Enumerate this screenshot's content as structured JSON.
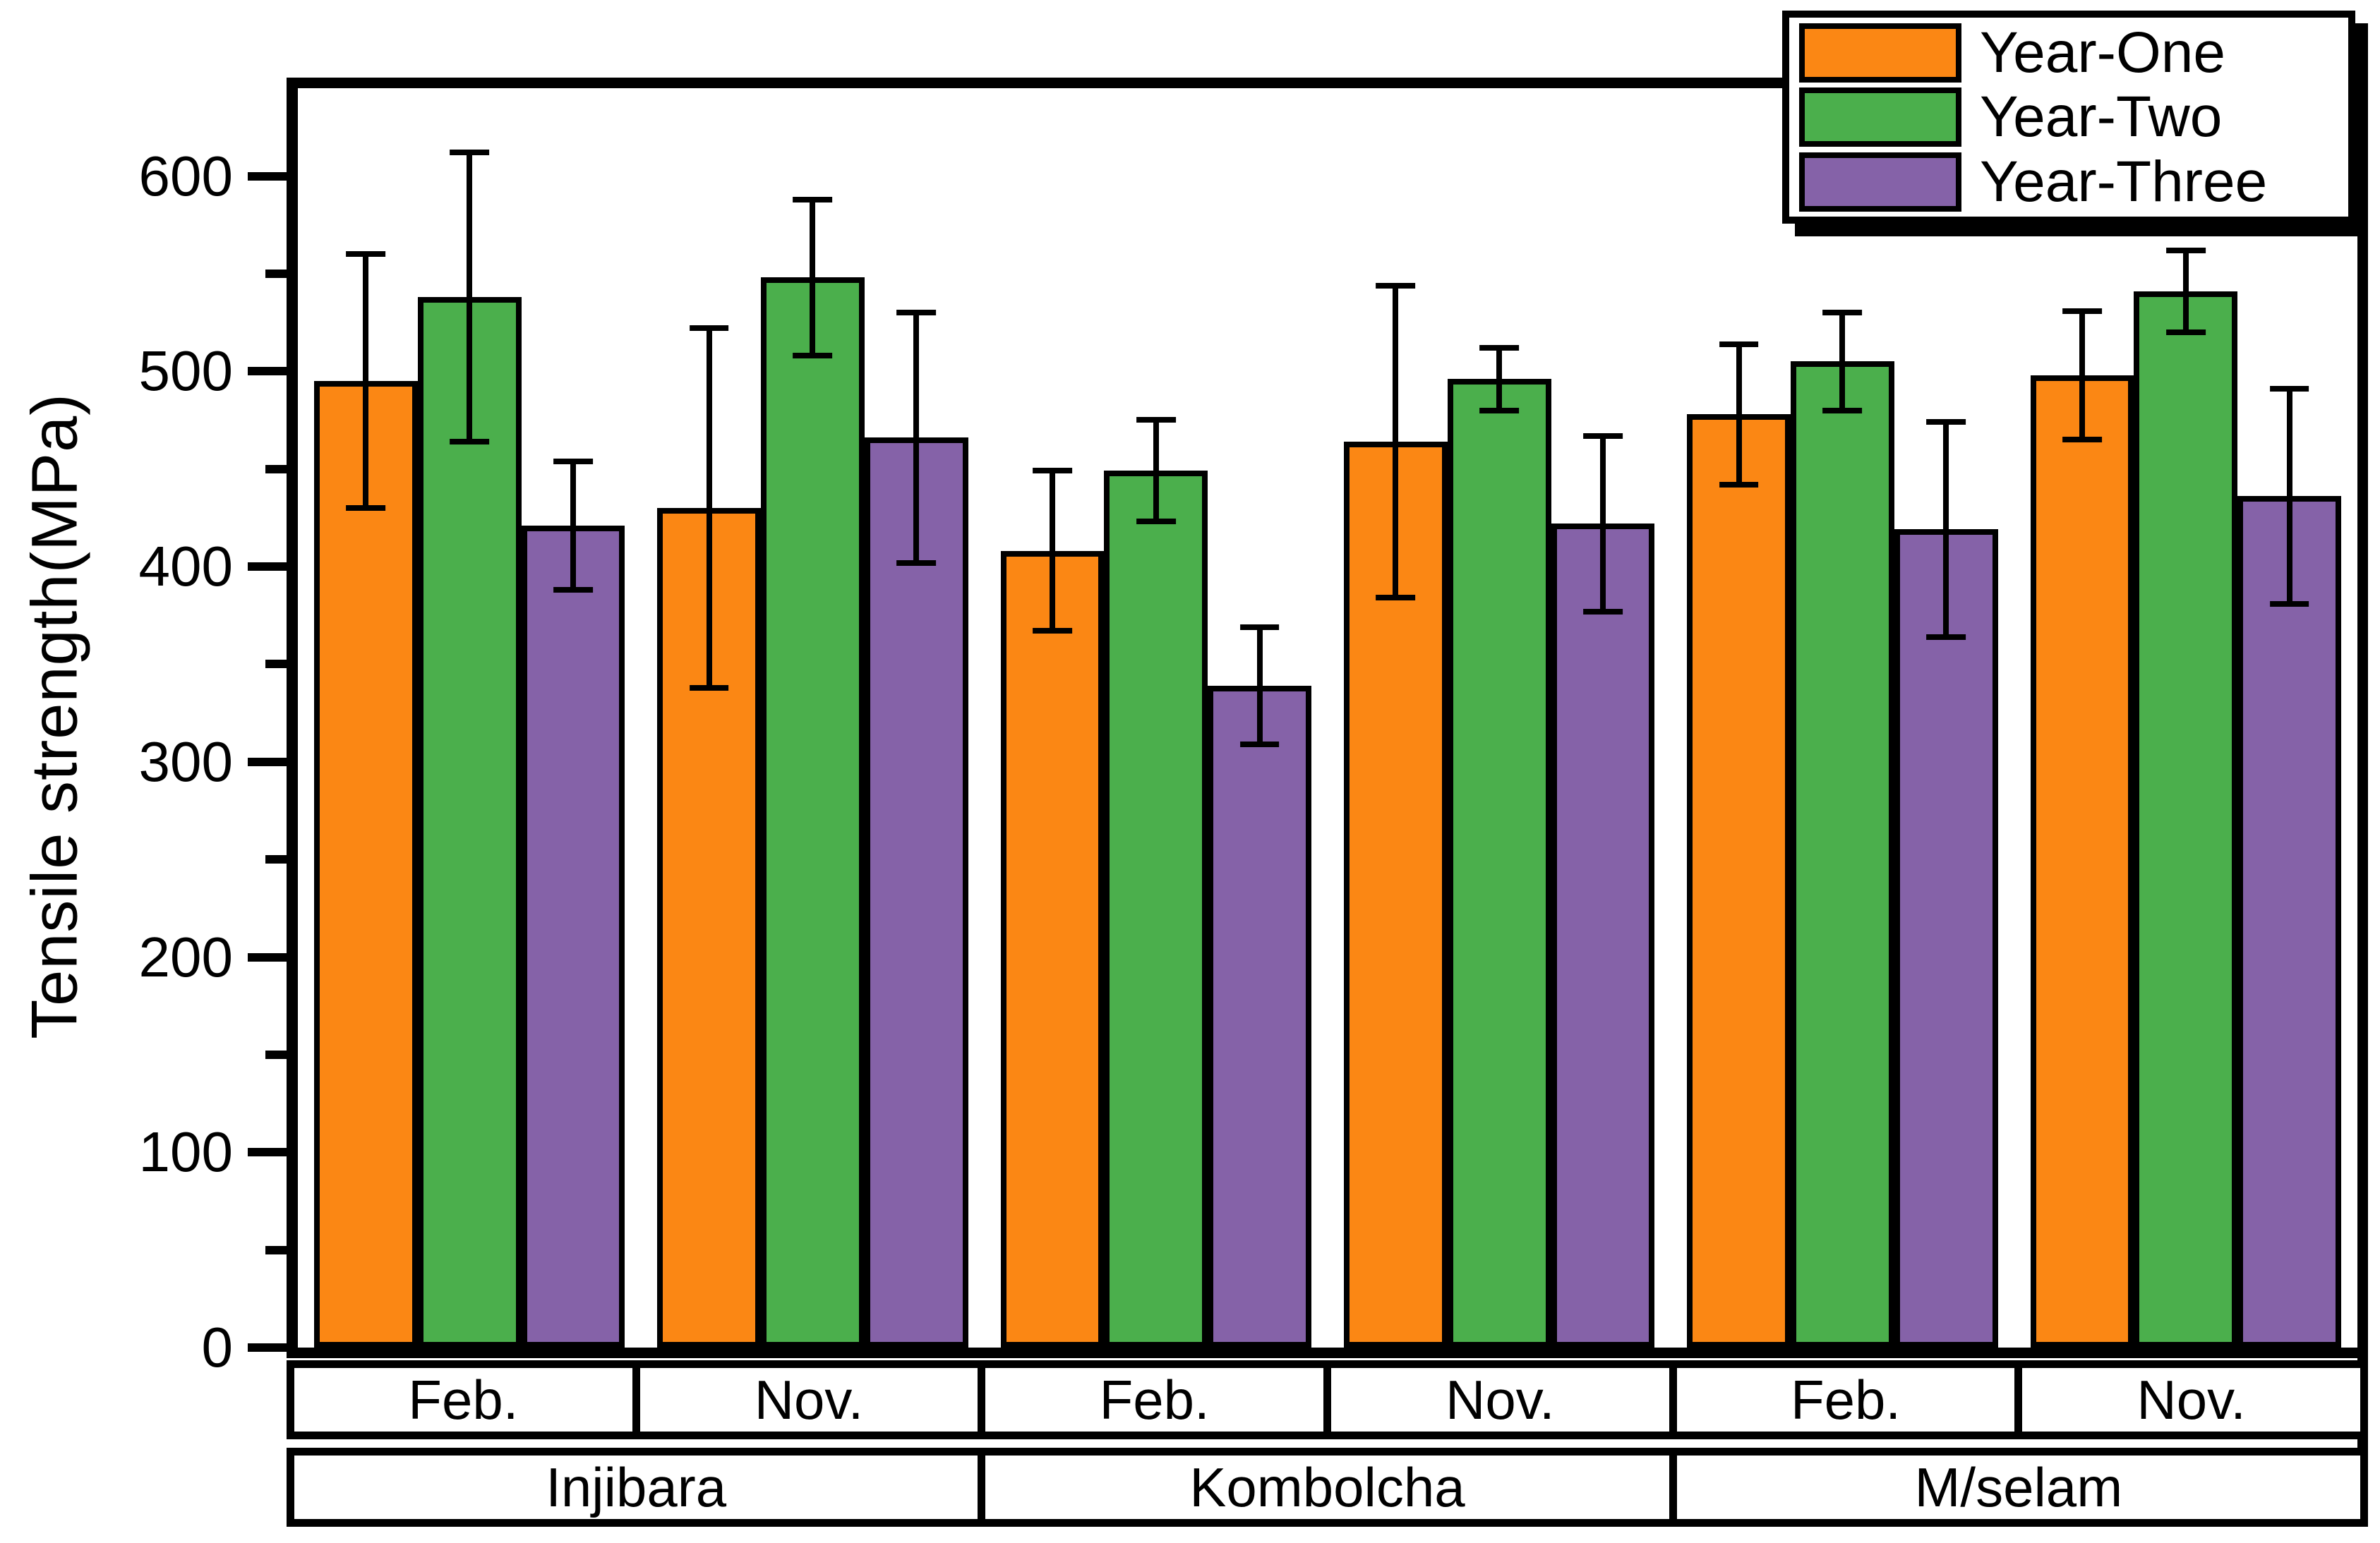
{
  "figure": {
    "y_axis_title": "Tensile strength(MPa)"
  },
  "colors": {
    "year_one": "#FB8714",
    "year_two": "#4BAF4C",
    "year_three": "#8562A8",
    "axis": "#000000",
    "background": "#FFFFFF"
  },
  "y_axis": {
    "min": 0,
    "max": 645,
    "major_ticks": [
      0,
      100,
      200,
      300,
      400,
      500,
      600
    ],
    "minor_ticks": [
      50,
      150,
      250,
      350,
      450,
      550
    ]
  },
  "x_axis": {
    "month_labels": [
      "Feb.",
      "Nov.",
      "Feb.",
      "Nov.",
      "Feb.",
      "Nov."
    ],
    "location_labels": [
      "Injibara",
      "Kombolcha",
      "M/selam"
    ]
  },
  "legend": {
    "entries": [
      {
        "label": "Year-One",
        "color": "#FB8714"
      },
      {
        "label": "Year-Two",
        "color": "#4BAF4C"
      },
      {
        "label": "Year-Three",
        "color": "#8562A8"
      }
    ]
  },
  "chart_data": {
    "type": "bar",
    "title": "",
    "xlabel": "",
    "ylabel": "Tensile strength(MPa)",
    "ylim": [
      0,
      650
    ],
    "grid": false,
    "legend_position": "top-right",
    "error_bars": true,
    "categories": [
      "Injibara Feb.",
      "Injibara Nov.",
      "Kombolcha Feb.",
      "Kombolcha Nov.",
      "M/selam Feb.",
      "M/selam Nov."
    ],
    "series": [
      {
        "name": "Year-One",
        "color": "#FB8714",
        "values": [
          495,
          430,
          408,
          464,
          478,
          498
        ],
        "errors": [
          65,
          92,
          41,
          80,
          36,
          33
        ]
      },
      {
        "name": "Year-Two",
        "color": "#4BAF4C",
        "values": [
          538,
          548,
          449,
          496,
          505,
          541
        ],
        "errors": [
          74,
          40,
          26,
          16,
          25,
          21
        ]
      },
      {
        "name": "Year-Three",
        "color": "#8562A8",
        "values": [
          421,
          466,
          339,
          422,
          419,
          436
        ],
        "errors": [
          33,
          64,
          30,
          45,
          55,
          55
        ]
      }
    ]
  }
}
